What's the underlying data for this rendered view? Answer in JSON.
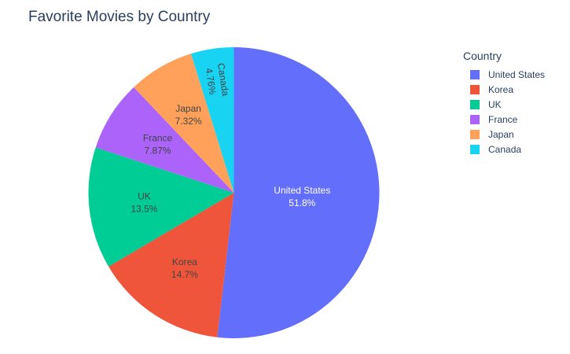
{
  "chart_data": {
    "type": "pie",
    "title": "Favorite Movies by Country",
    "legend_title": "Country",
    "legend_position": "top-right",
    "slices": [
      {
        "label": "United States",
        "percent_text": "51.8%",
        "value": 51.8,
        "color": "#636efa",
        "text_color": "#ffffff"
      },
      {
        "label": "Korea",
        "percent_text": "14.7%",
        "value": 14.7,
        "color": "#ef553b",
        "text_color": "#444444"
      },
      {
        "label": "UK",
        "percent_text": "13.5%",
        "value": 13.5,
        "color": "#00cc96",
        "text_color": "#444444"
      },
      {
        "label": "France",
        "percent_text": "7.87%",
        "value": 7.87,
        "color": "#ab63fa",
        "text_color": "#444444"
      },
      {
        "label": "Japan",
        "percent_text": "7.32%",
        "value": 7.32,
        "color": "#ffa15a",
        "text_color": "#444444"
      },
      {
        "label": "Canada",
        "percent_text": "4.76%",
        "value": 4.76,
        "color": "#19d3f3",
        "text_color": "#444444"
      }
    ]
  }
}
